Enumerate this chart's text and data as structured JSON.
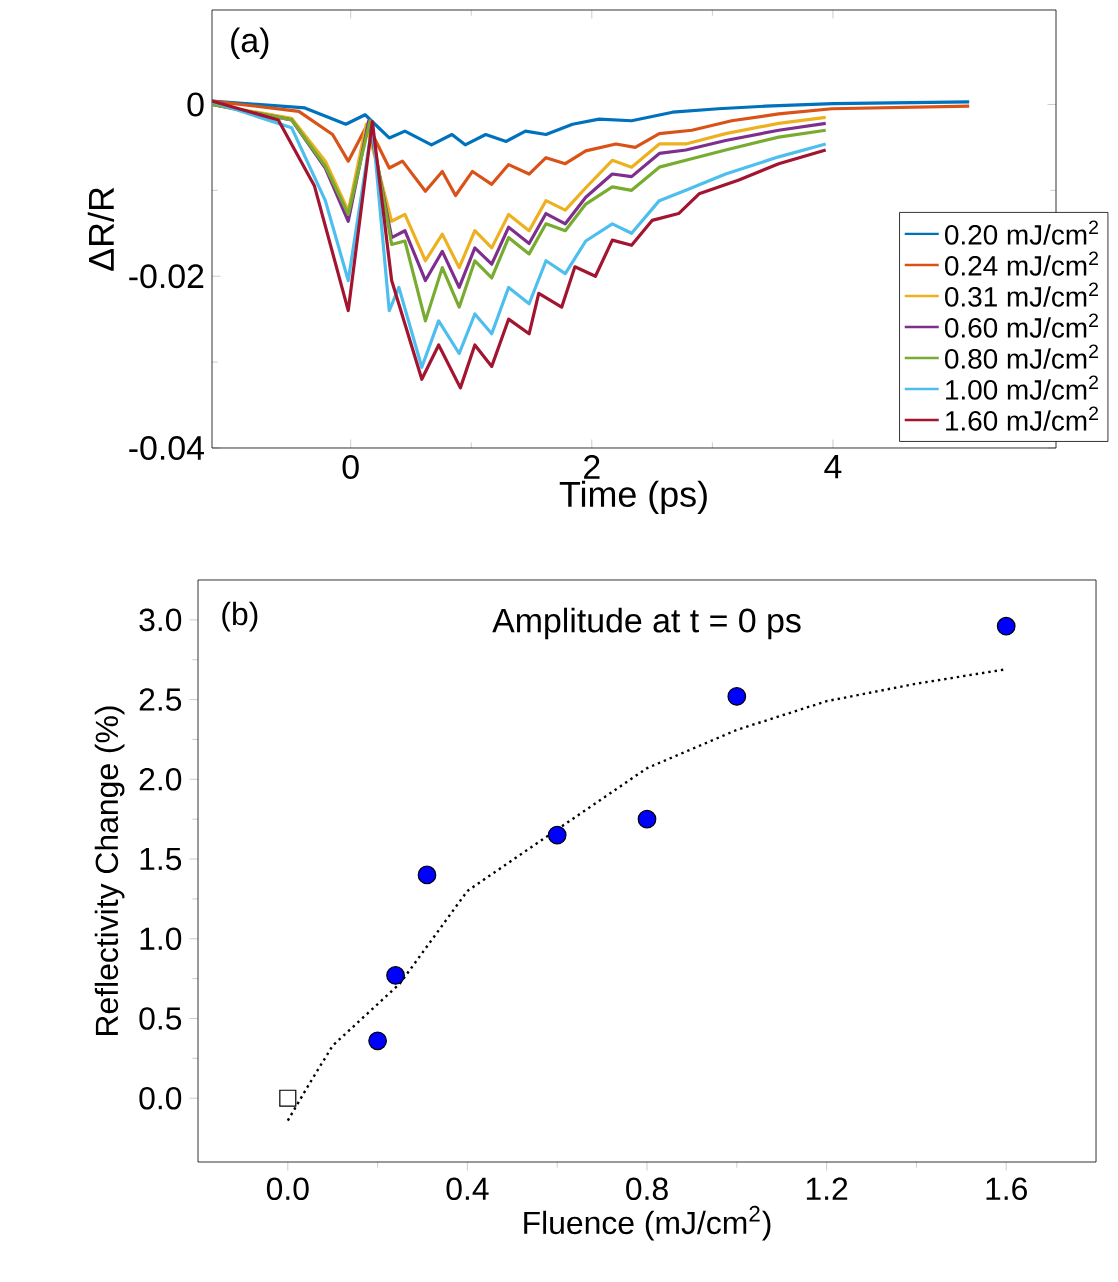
{
  "chart_data": [
    {
      "type": "line",
      "xlabel": "Time (ps)",
      "ylabel": "ΔR/R",
      "annotations": [
        "(a)"
      ],
      "xlim": [
        -1.15,
        5.85
      ],
      "ylim": [
        -0.04,
        0.011
      ],
      "xticks": [
        0,
        2,
        4
      ],
      "yticks": [
        -0.04,
        -0.02,
        0
      ],
      "legend": "right",
      "marker": "none",
      "line_style": "solid",
      "series": [
        {
          "name": "0.20 mJ/cm$^{2}$",
          "color": "#0072bd",
          "x": [
            -1.15,
            -0.38,
            -0.04,
            0.12,
            0.32,
            0.45,
            0.67,
            0.84,
            0.95,
            1.12,
            1.29,
            1.45,
            1.62,
            1.84,
            2.06,
            2.33,
            2.67,
            3.05,
            3.44,
            4.0,
            5.13
          ],
          "values": [
            0.0004,
            -0.0004,
            -0.0023,
            -0.0012,
            -0.0039,
            -0.0031,
            -0.0047,
            -0.0035,
            -0.0047,
            -0.0035,
            -0.0043,
            -0.0031,
            -0.0035,
            -0.0023,
            -0.0017,
            -0.0019,
            -0.0009,
            -0.0005,
            -0.0002,
            0.0001,
            0.0003
          ]
        },
        {
          "name": "0.24 mJ/cm$^{2}$",
          "color": "#d95319",
          "x": [
            -1.15,
            -0.43,
            -0.15,
            -0.02,
            0.14,
            0.32,
            0.43,
            0.62,
            0.76,
            0.87,
            1.01,
            1.17,
            1.31,
            1.48,
            1.62,
            1.78,
            1.95,
            2.2,
            2.36,
            2.56,
            2.83,
            3.16,
            3.55,
            3.99,
            5.13
          ],
          "values": [
            0.0004,
            -0.0008,
            -0.0035,
            -0.0066,
            -0.0023,
            -0.0074,
            -0.0066,
            -0.0101,
            -0.0078,
            -0.0106,
            -0.0078,
            -0.0093,
            -0.007,
            -0.0081,
            -0.0062,
            -0.0069,
            -0.0054,
            -0.0046,
            -0.005,
            -0.0034,
            -0.003,
            -0.0019,
            -0.0011,
            -0.0005,
            -0.0002
          ]
        },
        {
          "name": "0.31 mJ/cm$^{2}$",
          "color": "#edb120",
          "x": [
            -1.15,
            -0.49,
            -0.21,
            -0.02,
            0.13,
            0.34,
            0.45,
            0.62,
            0.76,
            0.9,
            1.03,
            1.17,
            1.31,
            1.48,
            1.62,
            1.78,
            1.95,
            2.17,
            2.33,
            2.56,
            2.78,
            3.11,
            3.55,
            3.94
          ],
          "values": [
            0.0,
            -0.0016,
            -0.0066,
            -0.0124,
            -0.0023,
            -0.0136,
            -0.0128,
            -0.0182,
            -0.0151,
            -0.019,
            -0.0147,
            -0.0167,
            -0.0128,
            -0.0147,
            -0.0112,
            -0.0123,
            -0.0097,
            -0.0065,
            -0.0073,
            -0.0046,
            -0.0046,
            -0.0034,
            -0.0022,
            -0.0015
          ]
        },
        {
          "name": "0.60 mJ/cm$^{2}$",
          "color": "#7e2f8e",
          "x": [
            -1.15,
            -0.49,
            -0.21,
            -0.02,
            0.15,
            0.34,
            0.45,
            0.62,
            0.76,
            0.9,
            1.03,
            1.17,
            1.31,
            1.48,
            1.62,
            1.78,
            1.95,
            2.17,
            2.33,
            2.56,
            2.78,
            3.11,
            3.55,
            3.94
          ],
          "values": [
            0.0,
            -0.0018,
            -0.0074,
            -0.0136,
            -0.0019,
            -0.0155,
            -0.0147,
            -0.0205,
            -0.0171,
            -0.0213,
            -0.0167,
            -0.0186,
            -0.0143,
            -0.0162,
            -0.0127,
            -0.0139,
            -0.0108,
            -0.0081,
            -0.0084,
            -0.0057,
            -0.0053,
            -0.0042,
            -0.003,
            -0.0022
          ]
        },
        {
          "name": "0.80 mJ/cm$^{2}$",
          "color": "#77ac30",
          "x": [
            -1.15,
            -0.49,
            -0.21,
            -0.02,
            0.16,
            0.34,
            0.45,
            0.62,
            0.76,
            0.9,
            1.03,
            1.17,
            1.31,
            1.48,
            1.62,
            1.78,
            1.95,
            2.17,
            2.33,
            2.56,
            2.78,
            3.11,
            3.55,
            3.94
          ],
          "values": [
            0.0,
            -0.0018,
            -0.0072,
            -0.0128,
            -0.0019,
            -0.0163,
            -0.0159,
            -0.0252,
            -0.019,
            -0.0236,
            -0.0182,
            -0.0202,
            -0.0155,
            -0.0174,
            -0.0139,
            -0.0147,
            -0.0116,
            -0.0096,
            -0.01,
            -0.0073,
            -0.0065,
            -0.0053,
            -0.0038,
            -0.003
          ]
        },
        {
          "name": "1.00 mJ/cm$^{2}$",
          "color": "#4dbeee",
          "x": [
            -1.15,
            -0.49,
            -0.21,
            -0.02,
            0.18,
            0.32,
            0.4,
            0.59,
            0.73,
            0.9,
            1.03,
            1.17,
            1.31,
            1.48,
            1.62,
            1.78,
            1.95,
            2.17,
            2.33,
            2.56,
            2.78,
            3.11,
            3.55,
            3.94
          ],
          "values": [
            0.0003,
            -0.0027,
            -0.0112,
            -0.0205,
            -0.0023,
            -0.024,
            -0.0213,
            -0.0306,
            -0.0252,
            -0.029,
            -0.0244,
            -0.0267,
            -0.0213,
            -0.0232,
            -0.0182,
            -0.0197,
            -0.0159,
            -0.0139,
            -0.015,
            -0.0112,
            -0.01,
            -0.0081,
            -0.0061,
            -0.0046
          ]
        },
        {
          "name": "1.60 mJ/cm$^{2}$",
          "color": "#a2142f",
          "x": [
            -1.15,
            -0.6,
            -0.3,
            -0.02,
            0.18,
            0.34,
            0.59,
            0.73,
            0.91,
            1.03,
            1.17,
            1.31,
            1.48,
            1.56,
            1.75,
            1.86,
            2.03,
            2.17,
            2.33,
            2.5,
            2.72,
            2.89,
            3.22,
            3.55,
            3.94
          ],
          "values": [
            0.0004,
            -0.0018,
            -0.0095,
            -0.024,
            -0.002,
            -0.0205,
            -0.032,
            -0.028,
            -0.033,
            -0.028,
            -0.0305,
            -0.025,
            -0.0267,
            -0.022,
            -0.0236,
            -0.0189,
            -0.02,
            -0.0158,
            -0.0164,
            -0.0135,
            -0.0127,
            -0.0104,
            -0.0088,
            -0.0069,
            -0.0053
          ]
        }
      ]
    },
    {
      "type": "scatter",
      "xlabel": "Fluence (mJ/cm$^{2}$)",
      "ylabel": "Reflectivity Change (%)",
      "annotations": [
        "(b)",
        "Amplitude at t = 0 ps"
      ],
      "xlim": [
        -0.2,
        1.8
      ],
      "ylim": [
        -0.4,
        3.25
      ],
      "xticks": [
        {
          "value": 0,
          "label": "0.0"
        },
        {
          "value": 0.4,
          "label": "0.4"
        },
        {
          "value": 0.8,
          "label": "0.8"
        },
        {
          "value": 1.2,
          "label": "1.2"
        },
        {
          "value": 1.6,
          "label": "1.6"
        }
      ],
      "yticks": [
        {
          "value": 0,
          "label": "0.0"
        },
        {
          "value": 0.5,
          "label": "0.5"
        },
        {
          "value": 1,
          "label": "1.0"
        },
        {
          "value": 1.5,
          "label": "1.5"
        },
        {
          "value": 2,
          "label": "2.0"
        },
        {
          "value": 2.5,
          "label": "2.5"
        },
        {
          "value": 3,
          "label": "3.0"
        }
      ],
      "series": [
        {
          "type": "line",
          "line_style": "dotted",
          "marker": "none",
          "color": "#000000",
          "x": [
            0,
            0.05,
            0.1,
            0.25,
            0.4,
            0.54,
            0.8,
            1.0,
            1.2,
            1.4,
            1.6
          ],
          "values": [
            -0.14,
            0.1,
            0.33,
            0.72,
            1.3,
            1.57,
            2.07,
            2.31,
            2.49,
            2.6,
            2.69
          ]
        },
        {
          "type": "scatter",
          "marker": "square",
          "color": "#000000",
          "x": [
            0
          ],
          "values": [
            0
          ]
        },
        {
          "type": "scatter",
          "marker": "circle",
          "color": "#0000ff",
          "x": [
            0.2,
            0.24,
            0.31,
            0.6,
            0.8,
            1.0,
            1.6
          ],
          "values": [
            0.36,
            0.77,
            1.4,
            1.65,
            1.75,
            2.52,
            2.96
          ]
        }
      ]
    }
  ]
}
